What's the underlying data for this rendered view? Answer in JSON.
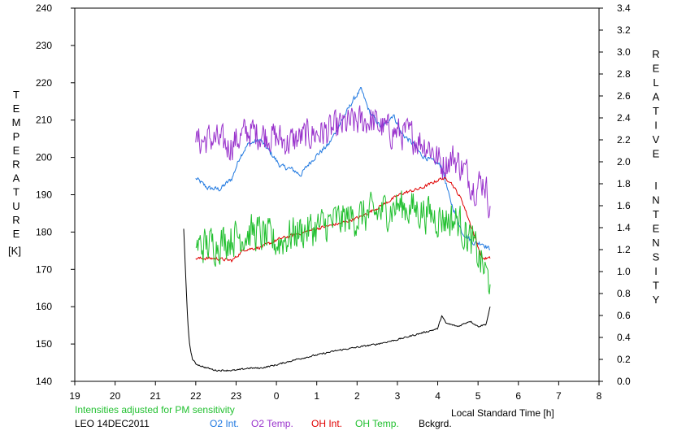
{
  "chart_data": {
    "type": "line",
    "left_axis_title": "TEMPERATURE",
    "left_axis_unit": "[K]",
    "right_axis_title": "RELATIVE INTENSITY",
    "xlabel": "Local Standard Time [h]",
    "note": "Intensities adjusted for PM sensitivity",
    "station": "LEO 14DEC2011",
    "x_axis": {
      "start": 19,
      "end": 32,
      "tick_labels": [
        "19",
        "20",
        "21",
        "22",
        "23",
        "0",
        "1",
        "2",
        "3",
        "4",
        "5",
        "6",
        "7",
        "8"
      ]
    },
    "y_left": {
      "min": 140,
      "max": 240,
      "ticks": [
        140,
        150,
        160,
        170,
        180,
        190,
        200,
        210,
        220,
        230,
        240
      ]
    },
    "y_right": {
      "min": 0.0,
      "max": 3.4,
      "tick_labels": [
        "0.0",
        "0.2",
        "0.4",
        "0.6",
        "0.8",
        "1.0",
        "1.2",
        "1.4",
        "1.6",
        "1.8",
        "2.0",
        "2.2",
        "2.4",
        "2.6",
        "2.8",
        "3.0",
        "3.2",
        "3.4"
      ]
    },
    "grid": false,
    "series": [
      {
        "name": "O2 Int.",
        "axis": "right",
        "color": "#1f78e0",
        "noise": 0.03,
        "points": [
          [
            22.0,
            1.85
          ],
          [
            22.3,
            1.76
          ],
          [
            22.6,
            1.75
          ],
          [
            22.9,
            1.85
          ],
          [
            23.1,
            2.05
          ],
          [
            23.3,
            2.16
          ],
          [
            23.6,
            2.2
          ],
          [
            23.9,
            2.06
          ],
          [
            24.1,
            1.96
          ],
          [
            24.4,
            1.93
          ],
          [
            24.6,
            1.88
          ],
          [
            24.8,
            1.98
          ],
          [
            25.0,
            2.06
          ],
          [
            25.3,
            2.16
          ],
          [
            25.6,
            2.36
          ],
          [
            25.9,
            2.56
          ],
          [
            26.1,
            2.66
          ],
          [
            26.3,
            2.46
          ],
          [
            26.6,
            2.31
          ],
          [
            26.9,
            2.43
          ],
          [
            27.1,
            2.26
          ],
          [
            27.4,
            2.16
          ],
          [
            27.6,
            2.06
          ],
          [
            27.9,
            2.0
          ],
          [
            28.1,
            1.96
          ],
          [
            28.3,
            1.66
          ],
          [
            28.6,
            1.36
          ],
          [
            28.9,
            1.26
          ],
          [
            29.1,
            1.26
          ],
          [
            29.3,
            1.2
          ]
        ]
      },
      {
        "name": "O2 Temp.",
        "axis": "left",
        "color": "#9933cc",
        "noise": 6,
        "points": [
          [
            22.0,
            204
          ],
          [
            22.4,
            205
          ],
          [
            22.8,
            203
          ],
          [
            23.3,
            207
          ],
          [
            23.8,
            206
          ],
          [
            24.3,
            204
          ],
          [
            24.8,
            206
          ],
          [
            25.3,
            207
          ],
          [
            25.8,
            209
          ],
          [
            26.3,
            210
          ],
          [
            26.8,
            207
          ],
          [
            27.3,
            206
          ],
          [
            27.8,
            203
          ],
          [
            28.1,
            198
          ],
          [
            28.4,
            200
          ],
          [
            28.7,
            196
          ],
          [
            28.9,
            192
          ],
          [
            29.15,
            194
          ],
          [
            29.3,
            187
          ]
        ]
      },
      {
        "name": "OH Int.",
        "axis": "right",
        "color": "#e00000",
        "noise": 0.02,
        "points": [
          [
            22.0,
            1.12
          ],
          [
            22.5,
            1.12
          ],
          [
            22.9,
            1.1
          ],
          [
            23.2,
            1.2
          ],
          [
            23.6,
            1.22
          ],
          [
            24.1,
            1.3
          ],
          [
            24.6,
            1.35
          ],
          [
            25.1,
            1.4
          ],
          [
            25.6,
            1.44
          ],
          [
            26.1,
            1.5
          ],
          [
            26.6,
            1.6
          ],
          [
            27.1,
            1.71
          ],
          [
            27.6,
            1.76
          ],
          [
            28.1,
            1.85
          ],
          [
            28.3,
            1.83
          ],
          [
            28.6,
            1.65
          ],
          [
            28.9,
            1.34
          ],
          [
            29.1,
            1.12
          ],
          [
            29.3,
            1.12
          ]
        ]
      },
      {
        "name": "OH Temp.",
        "axis": "left",
        "color": "#22c030",
        "noise": 7,
        "points": [
          [
            22.0,
            176
          ],
          [
            22.5,
            177
          ],
          [
            23.0,
            179
          ],
          [
            23.5,
            180
          ],
          [
            24.0,
            177
          ],
          [
            24.5,
            180
          ],
          [
            25.0,
            181
          ],
          [
            25.5,
            183
          ],
          [
            26.0,
            184
          ],
          [
            26.5,
            185
          ],
          [
            27.0,
            187
          ],
          [
            27.5,
            186
          ],
          [
            28.0,
            184
          ],
          [
            28.5,
            183
          ],
          [
            28.9,
            176
          ],
          [
            29.15,
            170
          ],
          [
            29.3,
            166
          ]
        ]
      },
      {
        "name": "Bckgrd.",
        "axis": "right",
        "color": "#000000",
        "noise": 0.01,
        "points": [
          [
            21.7,
            1.39
          ],
          [
            21.75,
            0.95
          ],
          [
            21.8,
            0.55
          ],
          [
            21.85,
            0.32
          ],
          [
            21.92,
            0.2
          ],
          [
            22.0,
            0.16
          ],
          [
            22.2,
            0.13
          ],
          [
            22.5,
            0.1
          ],
          [
            23.0,
            0.1
          ],
          [
            23.3,
            0.12
          ],
          [
            23.6,
            0.12
          ],
          [
            24.0,
            0.15
          ],
          [
            24.5,
            0.2
          ],
          [
            25.0,
            0.24
          ],
          [
            25.5,
            0.28
          ],
          [
            26.0,
            0.31
          ],
          [
            26.5,
            0.34
          ],
          [
            27.0,
            0.38
          ],
          [
            27.5,
            0.43
          ],
          [
            28.0,
            0.48
          ],
          [
            28.1,
            0.6
          ],
          [
            28.2,
            0.53
          ],
          [
            28.5,
            0.5
          ],
          [
            28.8,
            0.55
          ],
          [
            29.0,
            0.5
          ],
          [
            29.2,
            0.52
          ],
          [
            29.3,
            0.68
          ]
        ]
      }
    ]
  }
}
